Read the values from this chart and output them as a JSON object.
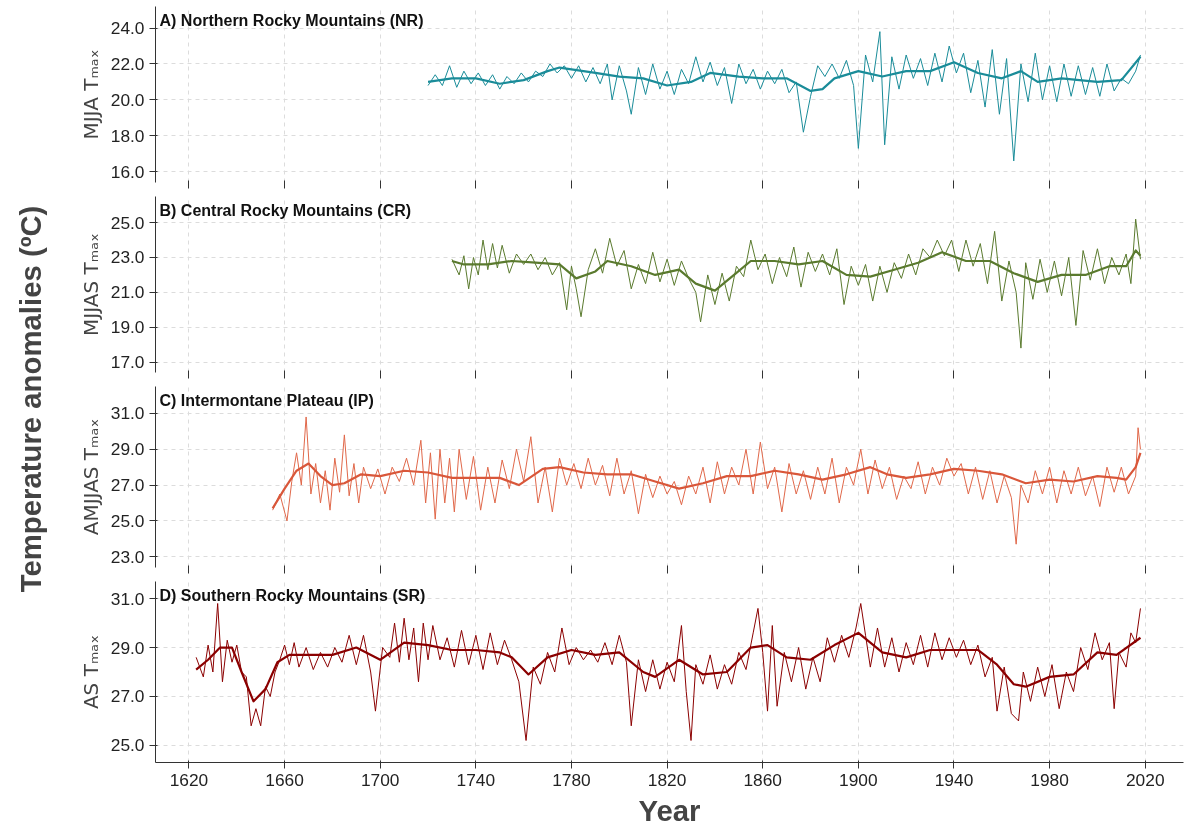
{
  "chart_data": [
    {
      "type": "line",
      "title": "A) Northern Rocky Mountains (NR)",
      "ylabel": "MJJA Tₘₐₓ",
      "annotations": [
        "Temperature anomalies (ºC)"
      ],
      "xlim": [
        1606,
        2036
      ],
      "ylim": [
        15.4,
        25.2
      ],
      "xticks": [
        1620,
        1660,
        1700,
        1740,
        1780,
        1820,
        1860,
        1900,
        1940,
        1980,
        2020
      ],
      "yticks": [
        {
          "value": 16,
          "label": "16.0"
        },
        {
          "value": 18,
          "label": "18.0"
        },
        {
          "value": 20,
          "label": "20.0"
        },
        {
          "value": 22,
          "label": "22.0"
        },
        {
          "value": 24,
          "label": "24.0"
        }
      ],
      "tick_labels": "y",
      "grid": true,
      "series": [
        {
          "color": "#1a8c99",
          "x": [
            1720,
            1723,
            1726,
            1729,
            1732,
            1735,
            1738,
            1741,
            1744,
            1747,
            1750,
            1753,
            1756,
            1759,
            1762,
            1765,
            1768,
            1771,
            1774,
            1777,
            1780,
            1783,
            1786,
            1789,
            1792,
            1795,
            1797,
            1800,
            1803,
            1805,
            1808,
            1811,
            1814,
            1817,
            1820,
            1823,
            1826,
            1829,
            1832,
            1835,
            1838,
            1841,
            1844,
            1847,
            1850,
            1853,
            1856,
            1859,
            1862,
            1865,
            1868,
            1871,
            1874,
            1877,
            1880,
            1883,
            1886,
            1889,
            1892,
            1895,
            1898,
            1900,
            1903,
            1906,
            1909,
            1911,
            1914,
            1917,
            1920,
            1923,
            1926,
            1929,
            1932,
            1935,
            1938,
            1941,
            1944,
            1947,
            1950,
            1953,
            1956,
            1959,
            1962,
            1965,
            1968,
            1971,
            1974,
            1977,
            1980,
            1983,
            1986,
            1989,
            1992,
            1995,
            1998,
            2001,
            2004,
            2007,
            2010,
            2013,
            2016,
            2018
          ],
          "values": [
            20.8,
            21.4,
            20.8,
            21.9,
            20.7,
            21.6,
            20.9,
            21.5,
            20.8,
            21.4,
            20.6,
            21.3,
            20.9,
            21.5,
            21.0,
            21.6,
            21.3,
            22.0,
            21.5,
            21.9,
            21.2,
            21.9,
            21.0,
            21.8,
            20.9,
            22.0,
            20.0,
            21.9,
            20.5,
            19.2,
            21.8,
            20.3,
            22.0,
            20.6,
            21.6,
            20.3,
            21.7,
            20.9,
            22.4,
            21.0,
            22.1,
            20.8,
            21.8,
            19.8,
            22.0,
            20.9,
            21.7,
            20.6,
            21.6,
            20.9,
            21.7,
            20.4,
            21.0,
            18.2,
            20.2,
            21.9,
            21.3,
            22.0,
            21.2,
            22.2,
            20.8,
            17.3,
            22.5,
            21.0,
            23.8,
            17.5,
            22.4,
            20.6,
            22.5,
            21.2,
            22.3,
            20.8,
            22.6,
            21.0,
            23.0,
            21.5,
            22.6,
            20.4,
            22.2,
            19.6,
            22.8,
            19.2,
            22.3,
            16.6,
            22.0,
            19.9,
            22.6,
            20.0,
            21.9,
            19.9,
            22.0,
            20.2,
            21.9,
            20.3,
            21.8,
            20.2,
            22.0,
            20.5,
            21.2,
            20.9,
            21.6,
            22.5
          ]
        },
        {
          "color": "#1a8c99",
          "x": [
            1720,
            1730,
            1740,
            1750,
            1760,
            1770,
            1775,
            1780,
            1790,
            1800,
            1810,
            1820,
            1830,
            1838,
            1850,
            1860,
            1870,
            1880,
            1885,
            1890,
            1900,
            1910,
            1920,
            1930,
            1940,
            1950,
            1960,
            1968,
            1975,
            1985,
            2000,
            2010,
            2018
          ],
          "values": [
            21.0,
            21.2,
            21.2,
            20.9,
            21.1,
            21.6,
            21.8,
            21.7,
            21.5,
            21.3,
            21.2,
            20.8,
            21.0,
            21.5,
            21.3,
            21.2,
            21.2,
            20.5,
            20.6,
            21.2,
            21.6,
            21.3,
            21.6,
            21.6,
            22.1,
            21.5,
            21.2,
            21.6,
            21.0,
            21.2,
            21.0,
            21.1,
            22.4
          ]
        }
      ]
    },
    {
      "type": "line",
      "title": "B) Central Rocky Mountains (CR)",
      "ylabel": "MJJAS Tₘₐₓ",
      "xlim": [
        1606,
        2036
      ],
      "ylim": [
        16.4,
        26.5
      ],
      "xticks": [
        1620,
        1660,
        1700,
        1740,
        1780,
        1820,
        1860,
        1900,
        1940,
        1980,
        2020
      ],
      "yticks": [
        {
          "value": 17,
          "label": "17.0"
        },
        {
          "value": 19,
          "label": "19.0"
        },
        {
          "value": 21,
          "label": "21.0"
        },
        {
          "value": 23,
          "label": "23.0"
        },
        {
          "value": 25,
          "label": "25.0"
        }
      ],
      "tick_labels": "y",
      "grid": true,
      "series": [
        {
          "color": "#5a7a2e",
          "x": [
            1730,
            1733,
            1735,
            1737,
            1739,
            1741,
            1743,
            1745,
            1747,
            1749,
            1751,
            1754,
            1757,
            1760,
            1763,
            1766,
            1769,
            1772,
            1775,
            1778,
            1780,
            1782,
            1784,
            1787,
            1790,
            1793,
            1796,
            1799,
            1802,
            1805,
            1808,
            1811,
            1814,
            1817,
            1820,
            1823,
            1826,
            1829,
            1832,
            1834,
            1837,
            1840,
            1843,
            1846,
            1849,
            1852,
            1855,
            1858,
            1861,
            1864,
            1867,
            1870,
            1873,
            1876,
            1879,
            1882,
            1885,
            1888,
            1891,
            1894,
            1897,
            1900,
            1903,
            1906,
            1909,
            1912,
            1915,
            1918,
            1921,
            1924,
            1927,
            1930,
            1933,
            1936,
            1939,
            1942,
            1945,
            1948,
            1951,
            1954,
            1957,
            1960,
            1963,
            1966,
            1968,
            1970,
            1973,
            1976,
            1979,
            1982,
            1985,
            1988,
            1991,
            1994,
            1997,
            2000,
            2003,
            2006,
            2009,
            2012,
            2014,
            2016,
            2018
          ],
          "values": [
            22.9,
            22.0,
            23.1,
            21.2,
            23.0,
            22.0,
            24.0,
            22.3,
            23.8,
            22.4,
            23.7,
            22.1,
            23.2,
            22.6,
            23.2,
            22.3,
            23.0,
            22.0,
            22.7,
            20.0,
            22.5,
            21.2,
            19.6,
            22.3,
            23.5,
            22.1,
            24.1,
            22.5,
            23.4,
            21.2,
            22.6,
            21.5,
            23.3,
            21.6,
            22.9,
            21.4,
            22.8,
            21.8,
            21.0,
            19.3,
            22.0,
            20.3,
            22.1,
            20.5,
            22.5,
            21.9,
            24.0,
            22.3,
            23.2,
            21.5,
            23.0,
            21.9,
            23.6,
            21.3,
            23.3,
            22.2,
            23.2,
            22.0,
            23.5,
            20.3,
            22.5,
            21.4,
            22.6,
            20.5,
            22.5,
            21.0,
            22.7,
            21.8,
            23.2,
            22.0,
            23.5,
            23.0,
            24.0,
            23.1,
            24.0,
            22.2,
            24.0,
            22.5,
            23.8,
            21.5,
            24.5,
            20.5,
            22.8,
            21.0,
            17.8,
            22.7,
            20.6,
            22.9,
            21.0,
            22.8,
            20.8,
            23.0,
            19.1,
            23.4,
            21.7,
            23.5,
            21.5,
            23.0,
            22.0,
            23.2,
            21.5,
            25.2,
            22.9
          ]
        },
        {
          "color": "#5a7a2e",
          "x": [
            1730,
            1735,
            1745,
            1755,
            1765,
            1775,
            1782,
            1790,
            1795,
            1805,
            1815,
            1825,
            1832,
            1840,
            1848,
            1855,
            1865,
            1875,
            1885,
            1895,
            1905,
            1915,
            1925,
            1935,
            1945,
            1955,
            1965,
            1975,
            1985,
            1995,
            2005,
            2012,
            2016,
            2018
          ],
          "values": [
            22.8,
            22.6,
            22.6,
            22.8,
            22.7,
            22.6,
            21.8,
            22.2,
            22.8,
            22.5,
            22.0,
            22.3,
            21.5,
            21.1,
            22.0,
            22.8,
            22.8,
            22.6,
            22.8,
            22.0,
            21.9,
            22.3,
            22.7,
            23.3,
            22.8,
            22.8,
            22.1,
            21.6,
            22.0,
            22.0,
            22.5,
            22.5,
            23.4,
            23.1
          ]
        }
      ]
    },
    {
      "type": "line",
      "title": "C) Intermontane Plateau (IP)",
      "ylabel": "AMJJAS Tₘₐₓ",
      "xlim": [
        1606,
        2036
      ],
      "ylim": [
        22.4,
        32.5
      ],
      "xticks": [
        1620,
        1660,
        1700,
        1740,
        1780,
        1820,
        1860,
        1900,
        1940,
        1980,
        2020
      ],
      "yticks": [
        {
          "value": 23,
          "label": "23.0"
        },
        {
          "value": 25,
          "label": "25.0"
        },
        {
          "value": 27,
          "label": "27.0"
        },
        {
          "value": 29,
          "label": "29.0"
        },
        {
          "value": 31,
          "label": "31.0"
        }
      ],
      "tick_labels": "y",
      "grid": true,
      "series": [
        {
          "color": "#e0684a",
          "x": [
            1655,
            1658,
            1661,
            1663,
            1665,
            1667,
            1669,
            1671,
            1673,
            1675,
            1677,
            1679,
            1681,
            1683,
            1685,
            1687,
            1689,
            1691,
            1693,
            1696,
            1699,
            1702,
            1705,
            1708,
            1711,
            1714,
            1717,
            1719,
            1721,
            1723,
            1725,
            1727,
            1729,
            1731,
            1733,
            1736,
            1739,
            1742,
            1745,
            1748,
            1751,
            1754,
            1757,
            1760,
            1763,
            1766,
            1769,
            1772,
            1775,
            1778,
            1781,
            1784,
            1787,
            1790,
            1793,
            1796,
            1799,
            1802,
            1805,
            1808,
            1811,
            1814,
            1817,
            1820,
            1823,
            1826,
            1829,
            1832,
            1835,
            1838,
            1841,
            1844,
            1847,
            1850,
            1853,
            1856,
            1859,
            1862,
            1865,
            1868,
            1871,
            1874,
            1877,
            1880,
            1883,
            1886,
            1889,
            1892,
            1895,
            1898,
            1901,
            1904,
            1907,
            1910,
            1913,
            1916,
            1919,
            1922,
            1925,
            1928,
            1931,
            1934,
            1937,
            1940,
            1943,
            1946,
            1949,
            1952,
            1955,
            1958,
            1961,
            1964,
            1966,
            1968,
            1971,
            1974,
            1977,
            1980,
            1983,
            1986,
            1989,
            1992,
            1995,
            1998,
            2001,
            2004,
            2007,
            2010,
            2013,
            2016,
            2017,
            2018
          ],
          "values": [
            25.6,
            26.5,
            25.0,
            27.2,
            28.8,
            27.0,
            30.8,
            26.5,
            28.2,
            26.0,
            27.8,
            25.6,
            28.5,
            26.6,
            29.8,
            26.4,
            28.2,
            26.0,
            28.0,
            26.8,
            27.9,
            26.5,
            28.0,
            27.2,
            28.5,
            27.0,
            29.5,
            26.0,
            28.8,
            25.1,
            29.0,
            26.0,
            28.5,
            25.5,
            29.0,
            26.2,
            28.6,
            25.6,
            28.0,
            26.0,
            28.4,
            26.8,
            29.0,
            27.2,
            29.7,
            26.0,
            28.0,
            25.5,
            28.5,
            27.0,
            28.2,
            26.8,
            28.5,
            27.0,
            28.1,
            26.4,
            28.5,
            26.5,
            27.8,
            25.4,
            27.6,
            26.3,
            27.5,
            26.5,
            27.2,
            25.9,
            27.5,
            26.5,
            28.0,
            26.0,
            28.3,
            26.5,
            28.0,
            27.0,
            29.0,
            26.5,
            29.4,
            26.8,
            28.0,
            25.5,
            28.2,
            26.5,
            27.8,
            26.2,
            28.0,
            26.5,
            28.5,
            26.0,
            28.0,
            27.0,
            29.0,
            26.5,
            28.4,
            26.8,
            28.0,
            26.2,
            27.5,
            26.8,
            28.3,
            26.5,
            28.0,
            27.0,
            28.5,
            27.5,
            28.2,
            26.5,
            28.0,
            26.2,
            27.8,
            26.0,
            27.5,
            26.3,
            23.7,
            27.0,
            26.0,
            27.8,
            26.5,
            28.0,
            26.0,
            27.8,
            26.5,
            28.0,
            26.4,
            27.5,
            25.8,
            28.0,
            26.6,
            28.0,
            26.5,
            27.5,
            30.2,
            29.0
          ]
        },
        {
          "color": "#d9573a",
          "x": [
            1655,
            1660,
            1665,
            1670,
            1675,
            1680,
            1685,
            1692,
            1700,
            1710,
            1720,
            1730,
            1740,
            1750,
            1758,
            1768,
            1775,
            1785,
            1795,
            1805,
            1815,
            1825,
            1835,
            1845,
            1855,
            1865,
            1875,
            1885,
            1895,
            1905,
            1912,
            1920,
            1930,
            1940,
            1950,
            1960,
            1970,
            1980,
            1990,
            2000,
            2008,
            2012,
            2016,
            2018
          ],
          "values": [
            25.7,
            26.8,
            27.8,
            28.2,
            27.5,
            27.0,
            27.1,
            27.6,
            27.5,
            27.8,
            27.7,
            27.4,
            27.4,
            27.4,
            27.0,
            27.9,
            28.0,
            27.7,
            27.6,
            27.6,
            27.2,
            26.8,
            27.1,
            27.5,
            27.5,
            27.8,
            27.6,
            27.3,
            27.6,
            28.0,
            27.6,
            27.4,
            27.6,
            27.9,
            27.8,
            27.6,
            27.1,
            27.3,
            27.2,
            27.5,
            27.4,
            27.3,
            28.0,
            28.8
          ]
        }
      ]
    },
    {
      "type": "line",
      "title": "D) Southern Rocky Mountains (SR)",
      "xlabel": "Year",
      "ylabel": "AS Tₘₐₓ",
      "xlim": [
        1606,
        2036
      ],
      "ylim": [
        24.3,
        31.7
      ],
      "xticks": [
        1620,
        1660,
        1700,
        1740,
        1780,
        1820,
        1860,
        1900,
        1940,
        1980,
        2020
      ],
      "yticks": [
        {
          "value": 25,
          "label": "25.0"
        },
        {
          "value": 27,
          "label": "27.0"
        },
        {
          "value": 29,
          "label": "29.0"
        },
        {
          "value": 31,
          "label": "31.0"
        }
      ],
      "grid": true,
      "series": [
        {
          "color": "#8b0000",
          "x": [
            1623,
            1626,
            1628,
            1630,
            1632,
            1634,
            1636,
            1638,
            1640,
            1642,
            1644,
            1646,
            1648,
            1650,
            1652,
            1654,
            1656,
            1658,
            1660,
            1662,
            1664,
            1666,
            1669,
            1672,
            1675,
            1678,
            1681,
            1684,
            1687,
            1690,
            1693,
            1696,
            1698,
            1701,
            1704,
            1706,
            1708,
            1710,
            1712,
            1714,
            1716,
            1718,
            1720,
            1722,
            1725,
            1728,
            1731,
            1734,
            1737,
            1740,
            1743,
            1746,
            1749,
            1752,
            1755,
            1758,
            1761,
            1764,
            1767,
            1770,
            1773,
            1776,
            1779,
            1782,
            1785,
            1788,
            1791,
            1794,
            1797,
            1800,
            1803,
            1805,
            1808,
            1811,
            1814,
            1817,
            1820,
            1823,
            1826,
            1828,
            1830,
            1832,
            1835,
            1838,
            1841,
            1844,
            1847,
            1850,
            1853,
            1856,
            1858,
            1860,
            1862,
            1864,
            1866,
            1869,
            1872,
            1875,
            1878,
            1881,
            1884,
            1887,
            1890,
            1893,
            1896,
            1899,
            1901,
            1903,
            1905,
            1908,
            1911,
            1914,
            1917,
            1920,
            1923,
            1926,
            1929,
            1932,
            1935,
            1938,
            1941,
            1944,
            1947,
            1950,
            1953,
            1956,
            1958,
            1961,
            1964,
            1967,
            1969,
            1972,
            1975,
            1978,
            1981,
            1984,
            1987,
            1990,
            1993,
            1996,
            1999,
            2002,
            2005,
            2007,
            2009,
            2012,
            2014,
            2016,
            2018
          ],
          "values": [
            28.6,
            27.8,
            29.1,
            28.0,
            30.8,
            27.6,
            29.3,
            28.4,
            29.1,
            28.0,
            27.8,
            25.8,
            26.5,
            25.8,
            27.4,
            27.0,
            28.0,
            28.5,
            29.1,
            28.3,
            29.2,
            28.2,
            29.0,
            28.1,
            28.8,
            28.2,
            29.0,
            28.4,
            29.5,
            28.3,
            29.5,
            28.0,
            26.4,
            29.0,
            28.6,
            30.0,
            28.4,
            30.2,
            28.5,
            29.8,
            27.6,
            30.0,
            28.5,
            29.9,
            28.5,
            29.4,
            28.2,
            29.7,
            28.3,
            29.5,
            28.1,
            29.6,
            28.3,
            29.3,
            28.5,
            27.6,
            25.2,
            28.2,
            27.5,
            28.8,
            28.0,
            29.8,
            28.3,
            29.0,
            28.5,
            28.9,
            28.4,
            29.2,
            28.3,
            29.5,
            28.4,
            25.8,
            28.5,
            27.2,
            28.5,
            27.3,
            28.4,
            27.6,
            29.9,
            27.2,
            25.2,
            28.3,
            27.5,
            28.7,
            27.3,
            28.3,
            27.5,
            28.8,
            28.1,
            29.6,
            30.6,
            28.8,
            26.4,
            29.9,
            26.6,
            28.8,
            27.6,
            29.0,
            27.3,
            28.6,
            27.6,
            29.4,
            28.4,
            29.5,
            28.6,
            29.8,
            30.8,
            29.5,
            28.2,
            29.8,
            28.2,
            29.4,
            28.0,
            29.2,
            28.3,
            29.5,
            28.2,
            29.6,
            28.5,
            29.4,
            28.6,
            29.3,
            28.3,
            29.1,
            27.8,
            28.6,
            26.4,
            28.2,
            26.3,
            26.0,
            28.0,
            26.8,
            28.2,
            27.0,
            28.3,
            26.5,
            28.0,
            27.2,
            29.0,
            28.1,
            29.6,
            28.5,
            29.2,
            26.5,
            28.8,
            28.2,
            29.6,
            29.2,
            30.6
          ]
        },
        {
          "color": "#8b0000",
          "x": [
            1623,
            1628,
            1633,
            1638,
            1642,
            1647,
            1652,
            1657,
            1662,
            1670,
            1680,
            1690,
            1700,
            1710,
            1720,
            1730,
            1740,
            1750,
            1755,
            1762,
            1770,
            1780,
            1790,
            1800,
            1810,
            1815,
            1825,
            1835,
            1845,
            1855,
            1862,
            1870,
            1880,
            1890,
            1900,
            1910,
            1920,
            1930,
            1940,
            1950,
            1958,
            1965,
            1970,
            1980,
            1990,
            2000,
            2008,
            2018
          ],
          "values": [
            28.1,
            28.5,
            29.0,
            29.0,
            28.0,
            26.8,
            27.3,
            28.4,
            28.7,
            28.7,
            28.7,
            29.0,
            28.5,
            29.2,
            29.1,
            28.9,
            28.9,
            28.8,
            28.6,
            27.9,
            28.6,
            28.9,
            28.7,
            28.8,
            28.0,
            27.8,
            28.5,
            27.9,
            28.0,
            29.0,
            29.1,
            28.6,
            28.5,
            29.1,
            29.6,
            28.8,
            28.6,
            28.9,
            28.9,
            28.9,
            28.3,
            27.5,
            27.4,
            27.8,
            27.9,
            28.8,
            28.7,
            29.4
          ]
        }
      ]
    }
  ]
}
